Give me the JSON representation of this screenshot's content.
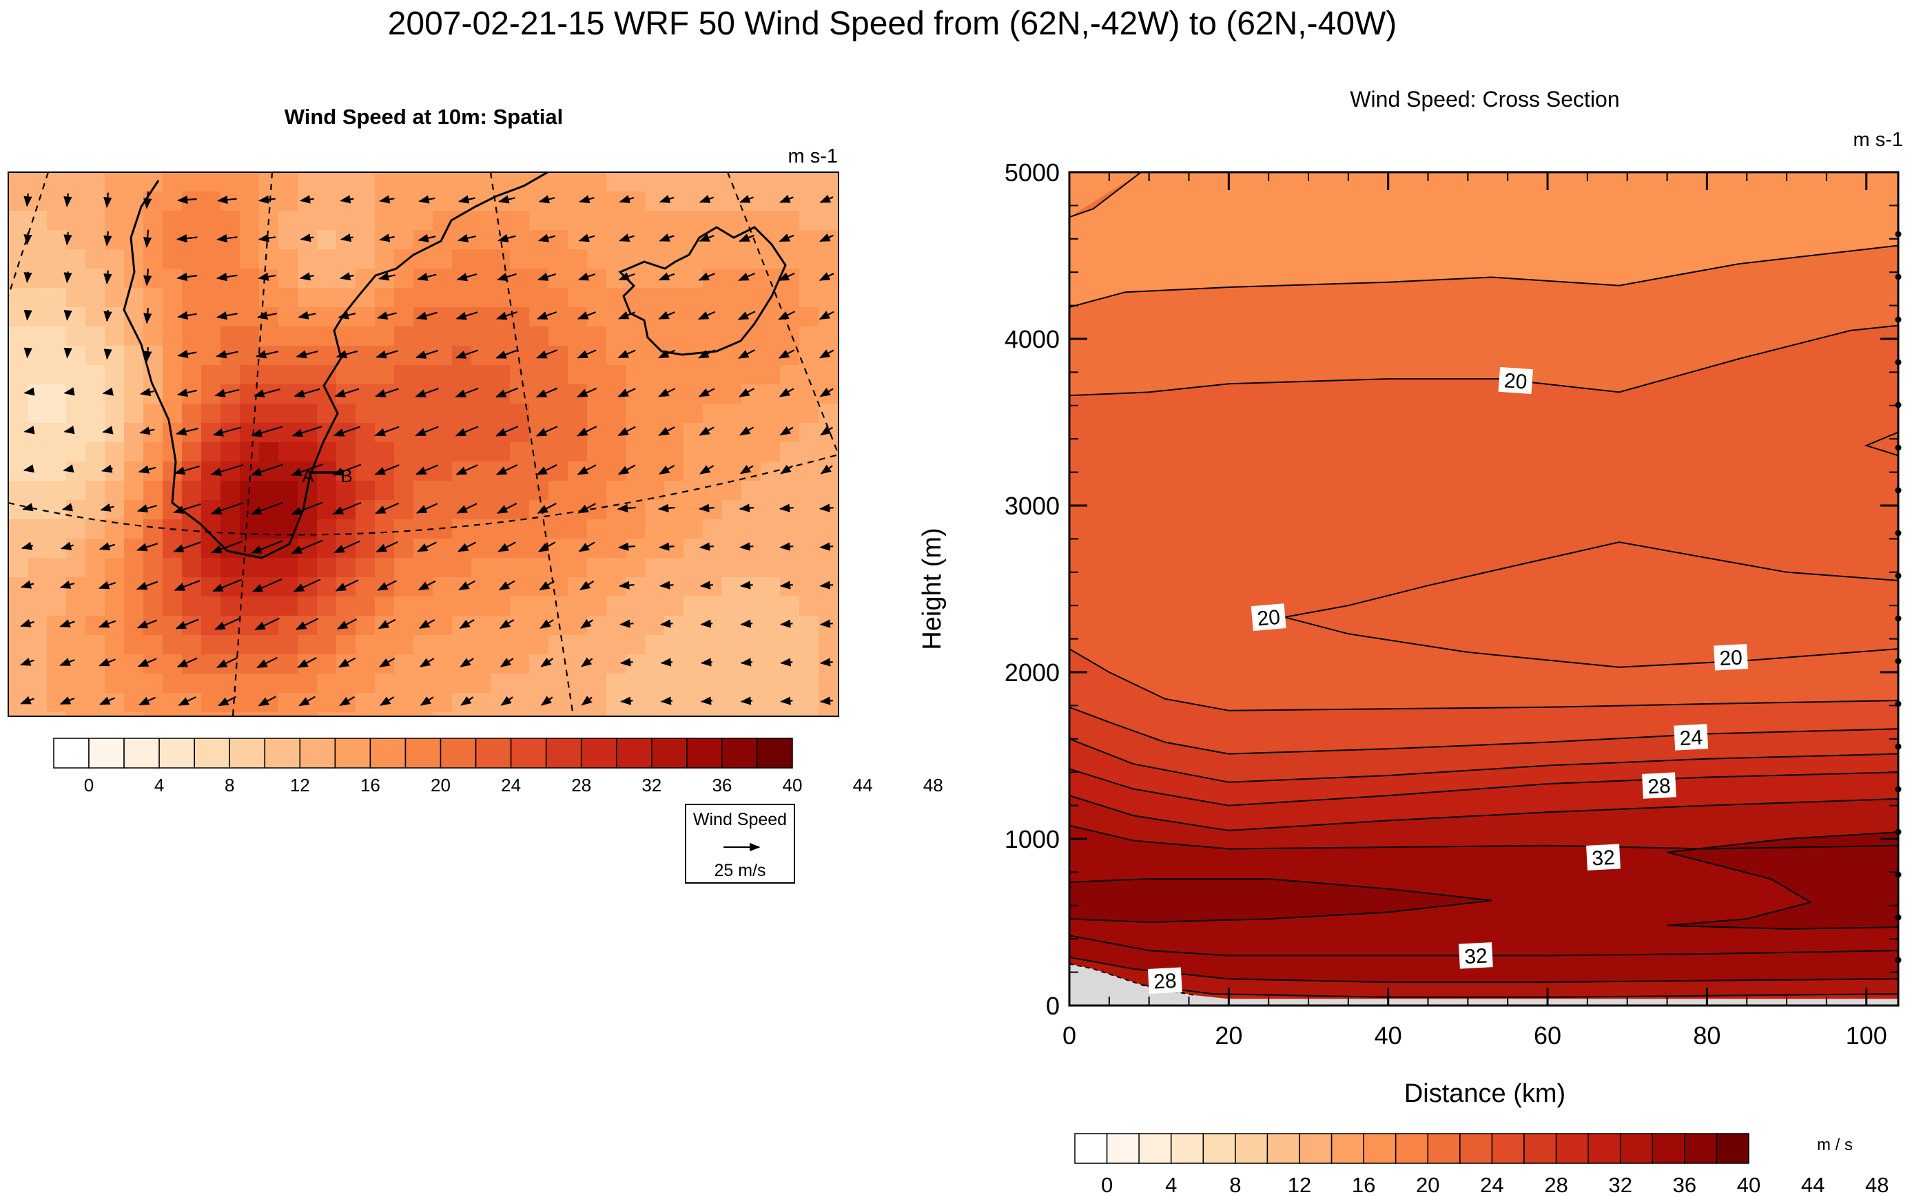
{
  "figure": {
    "title": "2007-02-21-15 WRF 50 Wind Speed from (62N,-42W) to (62N,-40W)"
  },
  "colors": {
    "palette": [
      "#ffffff",
      "#fff5ea",
      "#ffefdc",
      "#fee6c8",
      "#fddcb3",
      "#fdd0a2",
      "#fdc08b",
      "#fdb077",
      "#fda263",
      "#fc9352",
      "#f78445",
      "#ef7039",
      "#e85e30",
      "#df4c27",
      "#d53b1f",
      "#cc2b18",
      "#c01f11",
      "#b0150b",
      "#a00a06",
      "#8b0504",
      "#6f0000"
    ],
    "missing": "#d9d9d9",
    "contour": "#000000"
  },
  "colorbar": {
    "tick_labels": [
      "0",
      "4",
      "8",
      "12",
      "16",
      "20",
      "24",
      "28",
      "32",
      "36",
      "40",
      "44",
      "48"
    ]
  },
  "left_panel": {
    "title": "Wind Speed at 10m: Spatial",
    "units": "m s-1",
    "transect_start_label": "A",
    "transect_end_label": "B",
    "vector_legend": {
      "title": "Wind Speed",
      "label": "25 m/s"
    }
  },
  "chart_data": {
    "type": "contour",
    "title": "Wind Speed: Cross Section",
    "units": "m s-1",
    "colorbar_units": "m / s",
    "xlabel": "Distance (km)",
    "ylabel": "Height (m)",
    "xlim": [
      0,
      104
    ],
    "ylim": [
      0,
      5000
    ],
    "x_ticks": [
      0,
      20,
      40,
      60,
      80,
      100
    ],
    "y_ticks": [
      0,
      1000,
      2000,
      3000,
      4000,
      5000
    ],
    "level_step": 2,
    "contour_labels": [
      {
        "text": "20",
        "x": 56,
        "y": 3750
      },
      {
        "text": "20",
        "x": 25,
        "y": 2330
      },
      {
        "text": "20",
        "x": 83,
        "y": 2090
      },
      {
        "text": "24",
        "x": 78,
        "y": 1610
      },
      {
        "text": "28",
        "x": 74,
        "y": 1320
      },
      {
        "text": "32",
        "x": 67,
        "y": 890
      },
      {
        "text": "32",
        "x": 51,
        "y": 300
      },
      {
        "text": "28",
        "x": 12,
        "y": 150
      }
    ],
    "contours": [
      {
        "level": 18,
        "points": [
          [
            0,
            4730
          ],
          [
            3,
            4780
          ],
          [
            9,
            5000
          ]
        ]
      },
      {
        "level": 18,
        "points": [
          [
            0,
            4190
          ],
          [
            7,
            4280
          ],
          [
            20,
            4310
          ],
          [
            40,
            4340
          ],
          [
            53,
            4370
          ],
          [
            69,
            4320
          ],
          [
            84,
            4450
          ],
          [
            104,
            4560
          ]
        ]
      },
      {
        "level": 20,
        "points": [
          [
            0,
            3660
          ],
          [
            10,
            3680
          ],
          [
            20,
            3730
          ],
          [
            40,
            3760
          ],
          [
            54,
            3760
          ],
          [
            69,
            3680
          ],
          [
            84,
            3880
          ],
          [
            98,
            4050
          ],
          [
            104,
            4080
          ]
        ]
      },
      {
        "level": 20,
        "points": [
          [
            104,
            3440
          ],
          [
            100,
            3360
          ],
          [
            104,
            3300
          ]
        ]
      },
      {
        "level": 20,
        "points": [
          [
            104,
            2550
          ],
          [
            90,
            2600
          ],
          [
            69,
            2780
          ],
          [
            56,
            2640
          ],
          [
            45,
            2520
          ],
          [
            35,
            2400
          ],
          [
            27,
            2330
          ],
          [
            35,
            2230
          ],
          [
            50,
            2120
          ],
          [
            69,
            2030
          ],
          [
            85,
            2070
          ],
          [
            104,
            2140
          ]
        ]
      },
      {
        "level": 22,
        "points": [
          [
            0,
            2140
          ],
          [
            5,
            2000
          ],
          [
            12,
            1840
          ],
          [
            20,
            1770
          ],
          [
            40,
            1780
          ],
          [
            60,
            1790
          ],
          [
            80,
            1810
          ],
          [
            104,
            1830
          ]
        ]
      },
      {
        "level": 24,
        "points": [
          [
            0,
            1790
          ],
          [
            5,
            1700
          ],
          [
            12,
            1580
          ],
          [
            20,
            1510
          ],
          [
            40,
            1540
          ],
          [
            60,
            1580
          ],
          [
            80,
            1630
          ],
          [
            104,
            1660
          ]
        ]
      },
      {
        "level": 26,
        "points": [
          [
            0,
            1600
          ],
          [
            8,
            1450
          ],
          [
            20,
            1340
          ],
          [
            40,
            1380
          ],
          [
            60,
            1440
          ],
          [
            80,
            1480
          ],
          [
            104,
            1510
          ]
        ]
      },
      {
        "level": 28,
        "points": [
          [
            0,
            1420
          ],
          [
            8,
            1300
          ],
          [
            20,
            1200
          ],
          [
            40,
            1260
          ],
          [
            60,
            1330
          ],
          [
            80,
            1370
          ],
          [
            104,
            1400
          ]
        ]
      },
      {
        "level": 30,
        "points": [
          [
            0,
            1260
          ],
          [
            8,
            1140
          ],
          [
            20,
            1050
          ],
          [
            40,
            1110
          ],
          [
            60,
            1160
          ],
          [
            80,
            1200
          ],
          [
            104,
            1240
          ]
        ]
      },
      {
        "level": 32,
        "points": [
          [
            0,
            1080
          ],
          [
            8,
            990
          ],
          [
            20,
            940
          ],
          [
            40,
            950
          ],
          [
            60,
            960
          ],
          [
            80,
            940
          ],
          [
            104,
            960
          ]
        ]
      },
      {
        "level": 34,
        "points": [
          [
            0,
            740
          ],
          [
            10,
            760
          ],
          [
            25,
            760
          ],
          [
            40,
            700
          ],
          [
            53,
            630
          ],
          [
            40,
            560
          ],
          [
            25,
            520
          ],
          [
            10,
            500
          ],
          [
            0,
            520
          ]
        ]
      },
      {
        "level": 34,
        "points": [
          [
            104,
            1040
          ],
          [
            90,
            1000
          ],
          [
            75,
            920
          ],
          [
            88,
            760
          ],
          [
            93,
            620
          ],
          [
            85,
            520
          ],
          [
            75,
            480
          ],
          [
            90,
            460
          ],
          [
            104,
            470
          ]
        ]
      },
      {
        "level": 32,
        "points": [
          [
            0,
            420
          ],
          [
            10,
            330
          ],
          [
            20,
            300
          ],
          [
            40,
            300
          ],
          [
            60,
            300
          ],
          [
            80,
            310
          ],
          [
            104,
            330
          ]
        ]
      },
      {
        "level": 30,
        "points": [
          [
            0,
            290
          ],
          [
            8,
            220
          ],
          [
            20,
            160
          ],
          [
            40,
            140
          ],
          [
            60,
            140
          ],
          [
            80,
            150
          ],
          [
            104,
            160
          ]
        ]
      },
      {
        "level": 28,
        "points": [
          [
            0,
            200
          ],
          [
            8,
            130
          ],
          [
            18,
            70
          ],
          [
            40,
            50
          ],
          [
            60,
            50
          ],
          [
            104,
            70
          ]
        ]
      }
    ],
    "terrain": [
      [
        0,
        250
      ],
      [
        3,
        220
      ],
      [
        10,
        110
      ],
      [
        16,
        60
      ],
      [
        20,
        40
      ],
      [
        104,
        40
      ]
    ]
  }
}
